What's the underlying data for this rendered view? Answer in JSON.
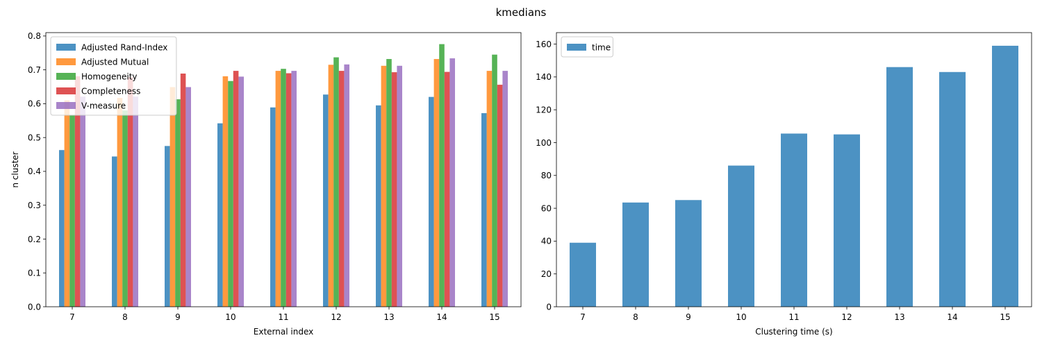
{
  "suptitle": "kmedians",
  "chart_data": [
    {
      "type": "bar",
      "title": "",
      "xlabel": "External index",
      "ylabel": "n cluster",
      "categories": [
        "7",
        "8",
        "9",
        "10",
        "11",
        "12",
        "13",
        "14",
        "15"
      ],
      "ylim": [
        0,
        0.81
      ],
      "yticks": [
        0.0,
        0.1,
        0.2,
        0.3,
        0.4,
        0.5,
        0.6,
        0.7,
        0.8
      ],
      "ytick_labels": [
        "0.0",
        "0.1",
        "0.2",
        "0.3",
        "0.4",
        "0.5",
        "0.6",
        "0.7",
        "0.8"
      ],
      "legend_position": "top-left",
      "series": [
        {
          "name": "Adjusted Rand-Index",
          "color": "#1f77b4",
          "values": [
            0.463,
            0.444,
            0.475,
            0.542,
            0.589,
            0.627,
            0.595,
            0.62,
            0.572
          ]
        },
        {
          "name": "Adjusted Mutual",
          "color": "#ff7f0e",
          "values": [
            0.61,
            0.617,
            0.649,
            0.681,
            0.697,
            0.715,
            0.712,
            0.732,
            0.697
          ]
        },
        {
          "name": "Homogeneity",
          "color": "#2ca02c",
          "values": [
            0.567,
            0.58,
            0.613,
            0.667,
            0.703,
            0.737,
            0.732,
            0.776,
            0.745
          ]
        },
        {
          "name": "Completeness",
          "color": "#d62728",
          "values": [
            0.681,
            0.679,
            0.689,
            0.697,
            0.69,
            0.697,
            0.693,
            0.694,
            0.656
          ]
        },
        {
          "name": "V-measure",
          "color": "#9467bd",
          "values": [
            0.621,
            0.621,
            0.649,
            0.68,
            0.697,
            0.716,
            0.712,
            0.734,
            0.697
          ]
        }
      ]
    },
    {
      "type": "bar",
      "title": "",
      "xlabel": "Clustering time (s)",
      "ylabel": "",
      "categories": [
        "7",
        "8",
        "9",
        "10",
        "11",
        "12",
        "13",
        "14",
        "15"
      ],
      "ylim": [
        0,
        167
      ],
      "yticks": [
        0,
        20,
        40,
        60,
        80,
        100,
        120,
        140,
        160
      ],
      "ytick_labels": [
        "0",
        "20",
        "40",
        "60",
        "80",
        "100",
        "120",
        "140",
        "160"
      ],
      "legend_position": "top-left",
      "series": [
        {
          "name": "time",
          "color": "#1f77b4",
          "values": [
            39,
            63.5,
            65,
            86,
            105.5,
            105,
            146,
            143,
            159
          ]
        }
      ]
    }
  ]
}
